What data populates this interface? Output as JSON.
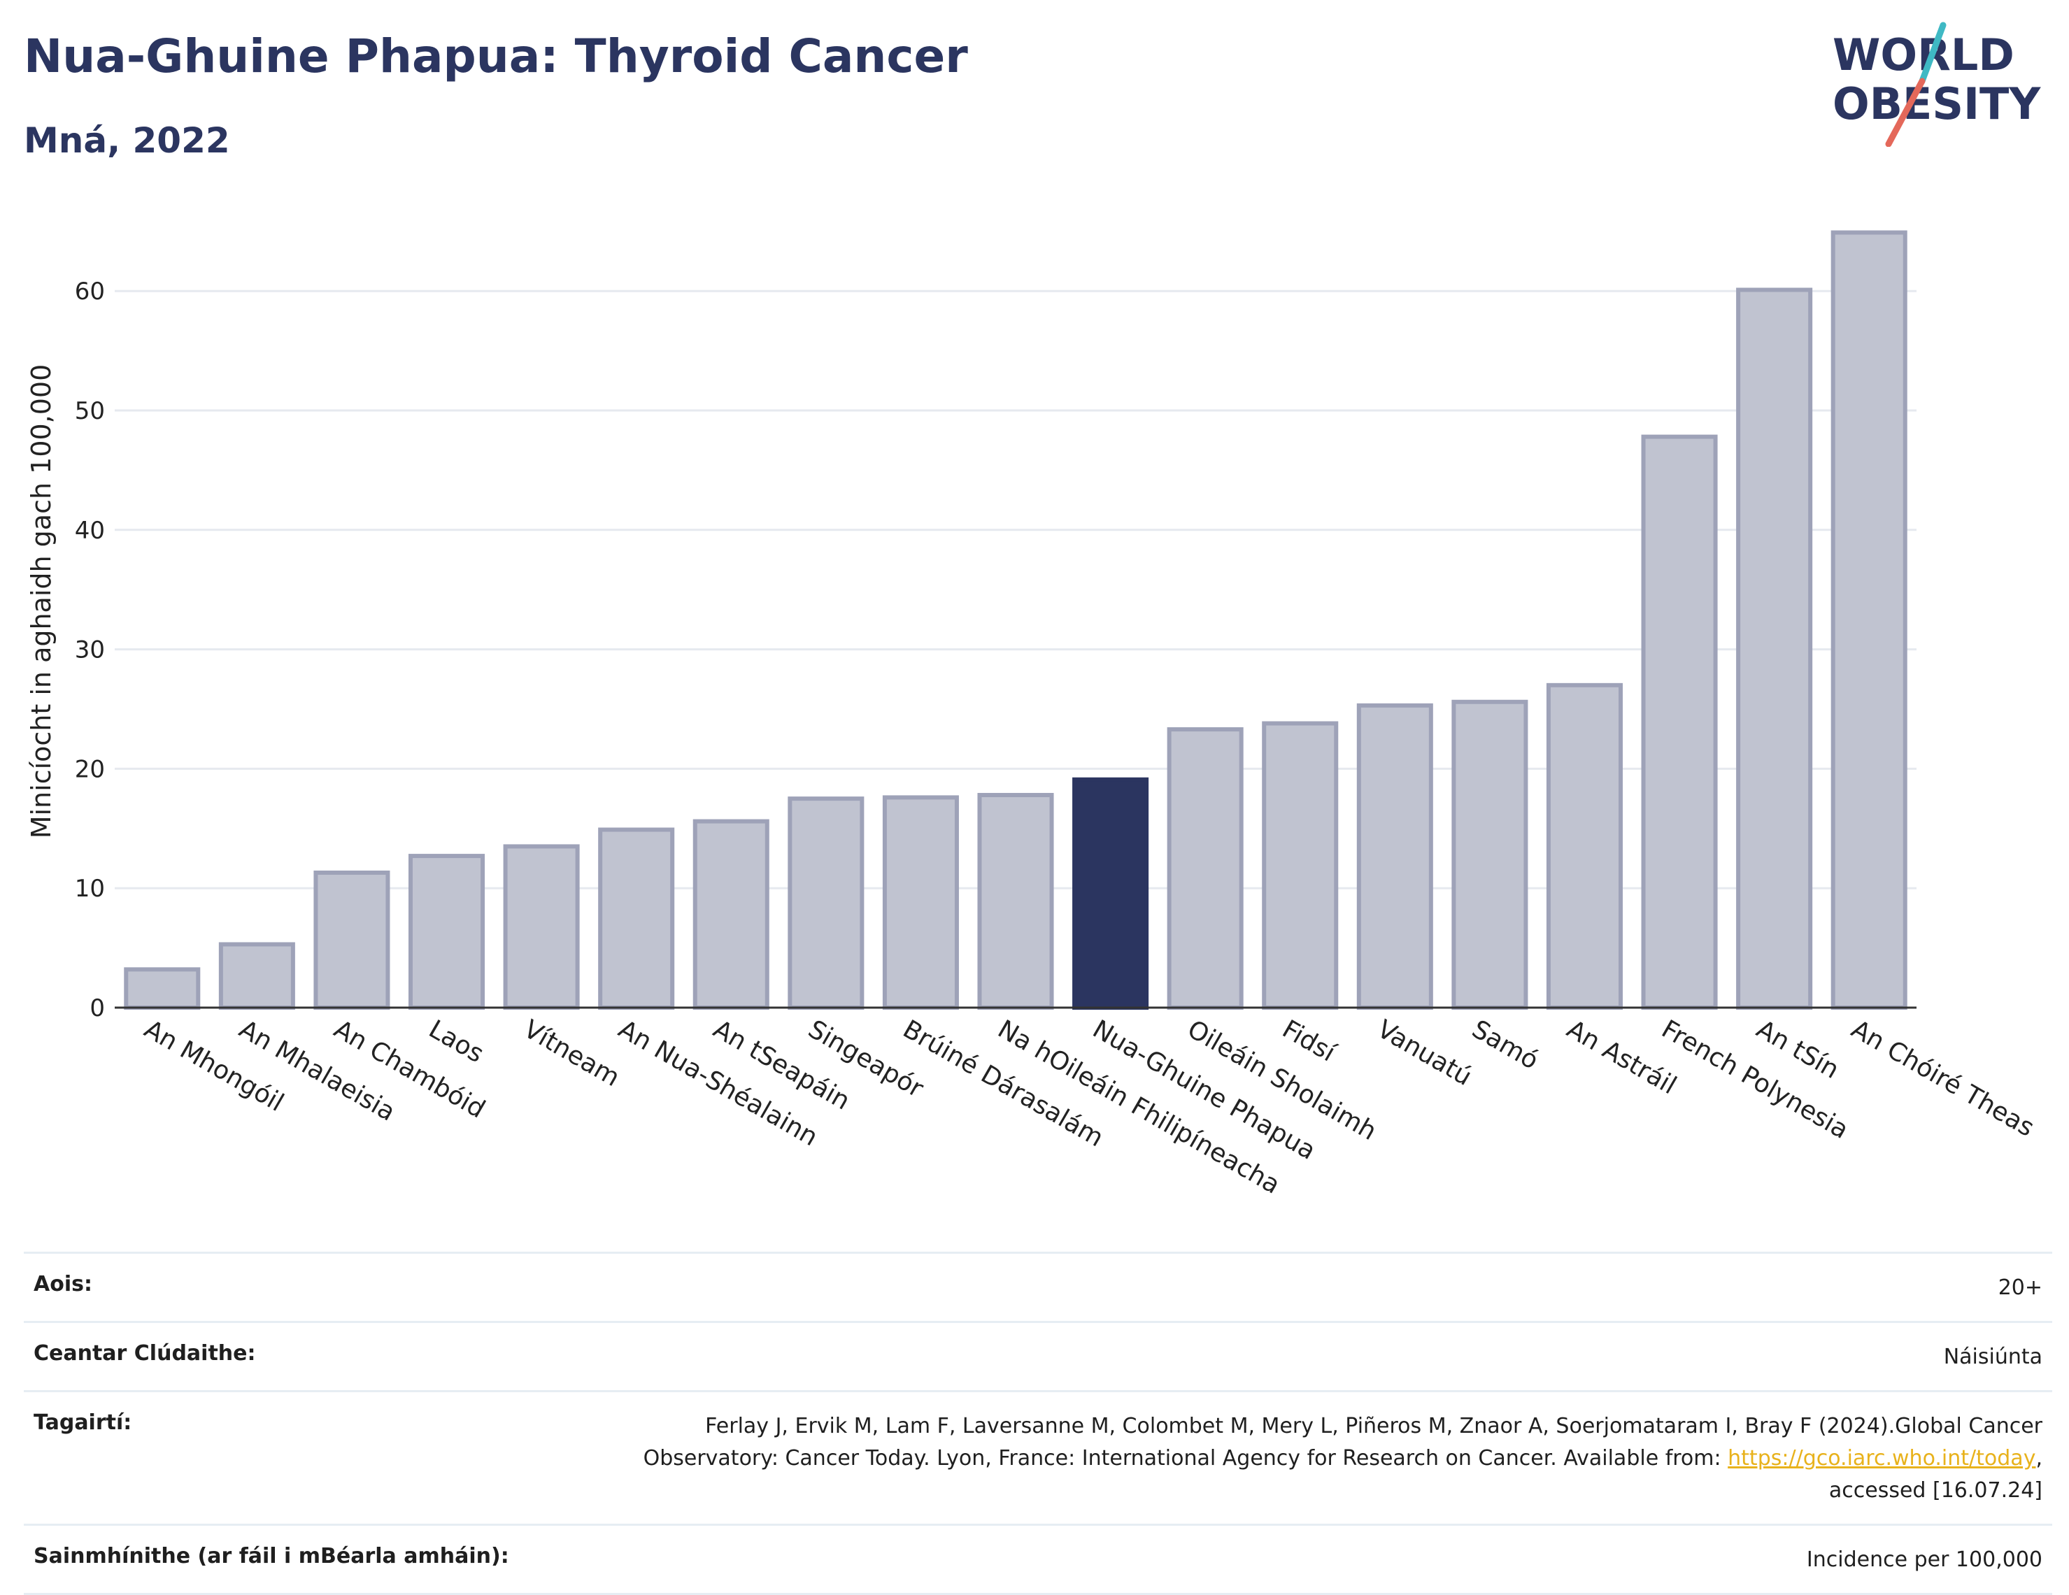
{
  "header": {
    "title": "Nua-Ghuine Phapua: Thyroid Cancer",
    "subtitle": "Mná, 2022"
  },
  "logo": {
    "line1": "WORLD",
    "line2": "OBESITY",
    "accent_colors": [
      "#3fb9c4",
      "#e4685a"
    ],
    "text_color": "#2b3560"
  },
  "chart_data": {
    "type": "bar",
    "ylabel": "Minicíocht in aghaidh gach 100,000",
    "xlabel": "",
    "ylim": [
      0,
      68
    ],
    "yticks": [
      0,
      10,
      20,
      30,
      40,
      50,
      60
    ],
    "grid": true,
    "bar_color": "#c0c3d0",
    "bar_edge_color": "#9ea2b8",
    "highlight_color": "#2b3560",
    "highlight_category": "Nua-Ghuine Phapua",
    "categories": [
      "An Mhongóil",
      "An Mhalaeisia",
      "An Chambóid",
      "Laos",
      "Vítneam",
      "An Nua-Shéalainn",
      "An tSeapáin",
      "Singeapór",
      "Brúiné Dárasalám",
      "Na hOileáin Fhilipíneacha",
      "Nua-Ghuine Phapua",
      "Oileáin Sholaimh",
      "Fidsí",
      "Vanuatú",
      "Samó",
      "An Astráil",
      "French Polynesia",
      "An tSín",
      "An Chóiré Theas"
    ],
    "values": [
      3.2,
      5.3,
      11.3,
      12.7,
      13.5,
      14.9,
      15.6,
      17.5,
      17.6,
      17.8,
      19.1,
      23.3,
      23.8,
      25.3,
      25.6,
      27.0,
      47.8,
      60.1,
      64.9
    ]
  },
  "info": {
    "age_label": "Aois:",
    "age_value": "20+",
    "area_label": "Ceantar Clúdaithe:",
    "area_value": "Náisiúnta",
    "refs_label": "Tagairtí:",
    "refs_line1": "Ferlay J, Ervik M, Lam F, Laversanne M, Colombet M, Mery L, Piñeros M, Znaor A, Soerjomataram I, Bray F (2024).Global Cancer",
    "refs_line2": "Observatory: Cancer Today. Lyon, France: International Agency for Research on Cancer. Available from: ",
    "refs_link": "https://gco.iarc.who.int/today",
    "refs_line2_end": ",",
    "refs_line3": "accessed [16.07.24]",
    "defs_label": "Sainmhínithe (ar fáil i mBéarla amháin):",
    "defs_value": "Incidence per 100,000"
  }
}
